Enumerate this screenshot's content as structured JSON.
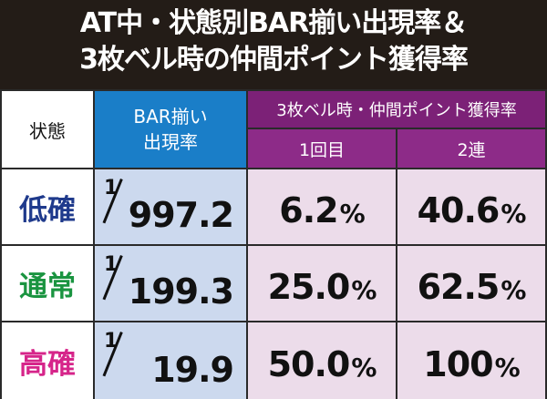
{
  "title": {
    "line1": "AT中・状態別BAR揃い出現率＆",
    "line2": "3枚ベル時の仲間ポイント獲得率"
  },
  "header": {
    "state": "状態",
    "bar_line1": "BAR揃い",
    "bar_line2": "出現率",
    "bell": "3枚ベル時・仲間ポイント獲得率",
    "sub1": "1回目",
    "sub2": "2連"
  },
  "rows": [
    {
      "state": "低確",
      "numerator": "1",
      "denominator": "997.2",
      "first": "6.2",
      "second": "40.6",
      "unit": "%"
    },
    {
      "state": "通常",
      "numerator": "1",
      "denominator": "199.3",
      "first": "25.0",
      "second": "62.5",
      "unit": "%"
    },
    {
      "state": "高確",
      "numerator": "1",
      "denominator": "19.9",
      "first": "50.0",
      "second": "100",
      "unit": "%"
    }
  ],
  "colors": {
    "background": "#231c17",
    "bar_header": "#1a7ec8",
    "bell_header": "#7c2177",
    "bar_cell": "#ccd9ee",
    "bell_cell": "#ecdcea",
    "state_low": "#1f3a8c",
    "state_normal": "#1a9440",
    "state_high": "#d6258a"
  }
}
